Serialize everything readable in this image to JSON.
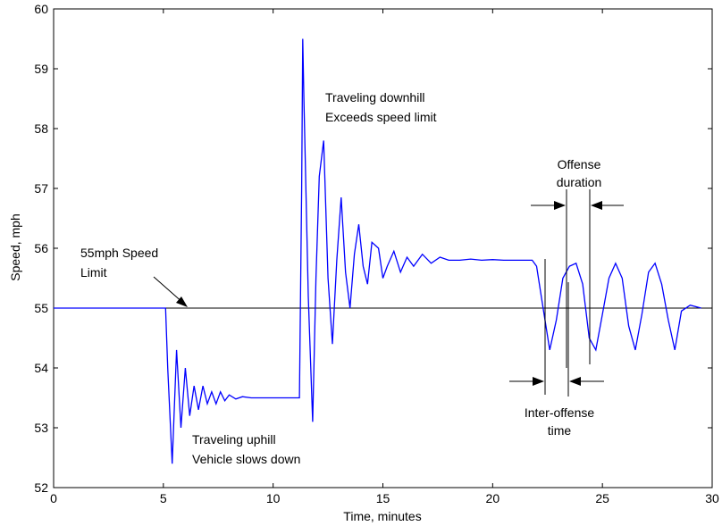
{
  "chart_data": {
    "type": "line",
    "title": "",
    "xlabel": "Time, minutes",
    "ylabel": "Speed, mph",
    "xlim": [
      0,
      30
    ],
    "ylim": [
      52,
      60
    ],
    "xticks": [
      "0",
      "5",
      "10",
      "15",
      "20",
      "25",
      "30"
    ],
    "yticks": [
      "52",
      "53",
      "54",
      "55",
      "56",
      "57",
      "58",
      "59",
      "60"
    ],
    "grid": false,
    "line_color": "#0000ff",
    "speed_limit": 55,
    "series": [
      {
        "x": [
          0,
          5.1,
          5.2,
          5.4,
          5.6,
          5.8,
          6.0,
          6.2,
          6.4,
          6.6,
          6.8,
          7.0,
          7.2,
          7.4,
          7.6,
          7.8,
          8.0,
          8.3,
          8.6,
          9.0,
          9.5,
          10.0,
          10.5,
          11.0,
          11.2,
          11.3,
          11.35,
          11.4,
          11.6,
          11.8,
          11.95,
          12.1,
          12.3,
          12.5,
          12.7,
          12.9,
          13.1,
          13.3,
          13.5,
          13.7,
          13.9,
          14.1,
          14.3,
          14.5,
          14.8,
          15.0,
          15.2,
          15.5,
          15.8,
          16.1,
          16.4,
          16.8,
          17.2,
          17.6,
          18.0,
          18.5,
          19.0,
          19.5,
          20.0,
          20.5,
          21.0,
          21.5,
          21.8,
          22.0,
          22.3,
          22.6,
          22.9,
          23.2,
          23.5,
          23.8,
          24.1,
          24.4,
          24.7,
          25.0,
          25.3,
          25.6,
          25.9,
          26.2,
          26.5,
          26.8,
          27.1,
          27.4,
          27.7,
          28.0,
          28.3,
          28.6,
          29.0,
          29.5
        ],
        "y": [
          55.0,
          55.0,
          54.0,
          52.4,
          54.3,
          53.0,
          54.0,
          53.2,
          53.7,
          53.3,
          53.7,
          53.4,
          53.6,
          53.4,
          53.6,
          53.45,
          53.55,
          53.48,
          53.52,
          53.5,
          53.5,
          53.5,
          53.5,
          53.5,
          53.5,
          57.0,
          59.5,
          58.5,
          55.2,
          53.1,
          55.5,
          57.2,
          57.8,
          55.5,
          54.4,
          55.8,
          56.85,
          55.6,
          55.0,
          55.9,
          56.4,
          55.7,
          55.4,
          56.1,
          56.0,
          55.5,
          55.7,
          55.95,
          55.6,
          55.85,
          55.7,
          55.9,
          55.75,
          55.85,
          55.8,
          55.8,
          55.82,
          55.8,
          55.81,
          55.8,
          55.8,
          55.8,
          55.8,
          55.7,
          55.0,
          54.3,
          54.8,
          55.5,
          55.7,
          55.75,
          55.4,
          54.5,
          54.3,
          54.9,
          55.5,
          55.75,
          55.5,
          54.7,
          54.3,
          54.9,
          55.6,
          55.75,
          55.4,
          54.8,
          54.3,
          54.95,
          55.05,
          55.0
        ]
      }
    ],
    "annotations": [
      {
        "lines": [
          "55mph Speed",
          "Limit"
        ]
      },
      {
        "lines": [
          "Traveling uphill",
          "Vehicle slows down"
        ]
      },
      {
        "lines": [
          "Traveling downhill",
          "Exceeds speed limit"
        ]
      },
      {
        "lines": [
          "Offense",
          "duration"
        ]
      },
      {
        "lines": [
          "Inter-offense",
          "time"
        ]
      }
    ]
  }
}
